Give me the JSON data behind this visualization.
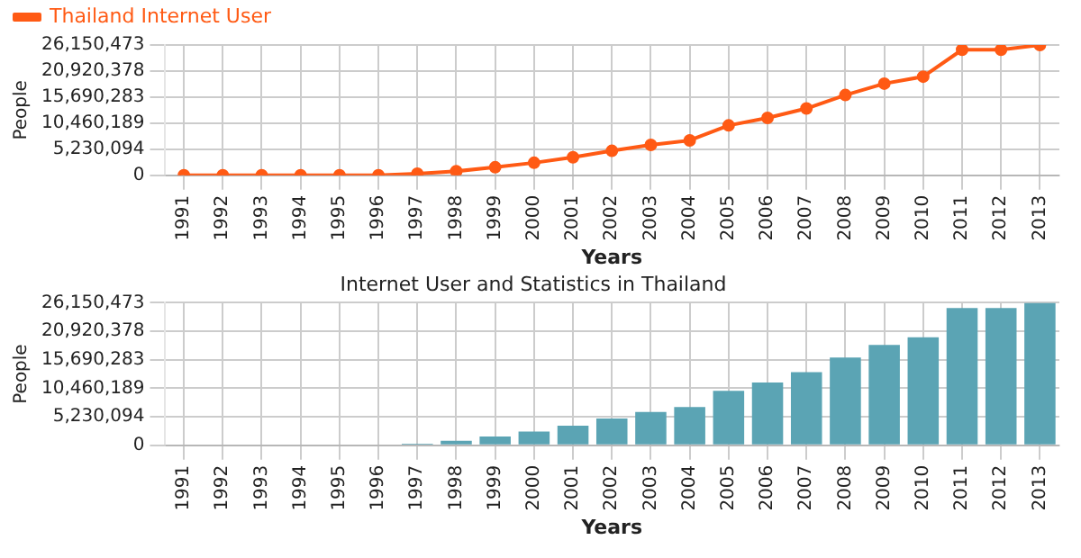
{
  "chart_data": [
    {
      "type": "line",
      "categories": [
        "1991",
        "1992",
        "1993",
        "1994",
        "1995",
        "1996",
        "1997",
        "1998",
        "1999",
        "2000",
        "2001",
        "2002",
        "2003",
        "2004",
        "2005",
        "2006",
        "2007",
        "2008",
        "2009",
        "2010",
        "2011",
        "2012",
        "2013"
      ],
      "series": [
        {
          "name": "Thailand Internet User",
          "color": "#ff5a14",
          "values": [
            0,
            0,
            0,
            0,
            0,
            0,
            300000,
            800000,
            1600000,
            2500000,
            3600000,
            4900000,
            6100000,
            7000000,
            10000000,
            11500000,
            13400000,
            16100000,
            18400000,
            19800000,
            25200000,
            25200000,
            26150473
          ]
        }
      ],
      "xlabel": "Years",
      "ylabel": "People",
      "ylim": [
        0,
        26150473
      ],
      "yticks": [
        {
          "value": 0,
          "label": "0"
        },
        {
          "value": 5230094,
          "label": "5,230,094"
        },
        {
          "value": 10460189,
          "label": "10,460,189"
        },
        {
          "value": 15690283,
          "label": "15,690,283"
        },
        {
          "value": 20920378,
          "label": "20,920,378"
        },
        {
          "value": 26150473,
          "label": "26,150,473"
        }
      ],
      "grid": true,
      "legend": "top left",
      "marker": "circle"
    },
    {
      "type": "bar",
      "title": "Internet User and Statistics in Thailand",
      "categories": [
        "1991",
        "1992",
        "1993",
        "1994",
        "1995",
        "1996",
        "1997",
        "1998",
        "1999",
        "2000",
        "2001",
        "2002",
        "2003",
        "2004",
        "2005",
        "2006",
        "2007",
        "2008",
        "2009",
        "2010",
        "2011",
        "2012",
        "2013"
      ],
      "series": [
        {
          "color": "#5ba4b4",
          "values": [
            0,
            0,
            0,
            0,
            0,
            0,
            300000,
            800000,
            1600000,
            2500000,
            3600000,
            4900000,
            6100000,
            7000000,
            10000000,
            11500000,
            13400000,
            16100000,
            18400000,
            19800000,
            25200000,
            25200000,
            26150473
          ]
        }
      ],
      "xlabel": "Years",
      "ylabel": "People",
      "ylim": [
        0,
        26150473
      ],
      "yticks": [
        {
          "value": 0,
          "label": "0"
        },
        {
          "value": 5230094,
          "label": "5,230,094"
        },
        {
          "value": 10460189,
          "label": "10,460,189"
        },
        {
          "value": 15690283,
          "label": "15,690,283"
        },
        {
          "value": 20920378,
          "label": "20,920,378"
        },
        {
          "value": 26150473,
          "label": "26,150,473"
        }
      ],
      "grid": true
    }
  ]
}
